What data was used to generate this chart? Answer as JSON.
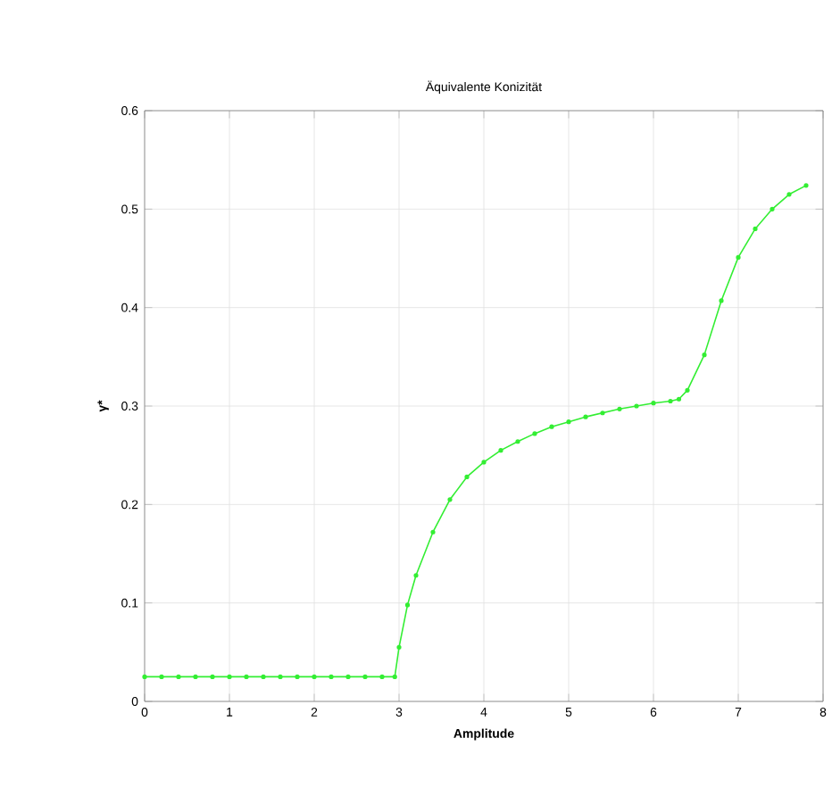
{
  "chart_data": {
    "type": "line",
    "title": "Äquivalente Konizität",
    "xlabel": "Amplitude",
    "ylabel": "γ*",
    "x": [
      0,
      0.2,
      0.4,
      0.6,
      0.8,
      1.0,
      1.2,
      1.4,
      1.6,
      1.8,
      2.0,
      2.2,
      2.4,
      2.6,
      2.8,
      2.95,
      3.0,
      3.1,
      3.2,
      3.4,
      3.6,
      3.8,
      4.0,
      4.2,
      4.4,
      4.6,
      4.8,
      5.0,
      5.2,
      5.4,
      5.6,
      5.8,
      6.0,
      6.2,
      6.3,
      6.4,
      6.6,
      6.8,
      7.0,
      7.2,
      7.4,
      7.6,
      7.8
    ],
    "series": [
      {
        "color": "#33ee33",
        "values": [
          0.025,
          0.025,
          0.025,
          0.025,
          0.025,
          0.025,
          0.025,
          0.025,
          0.025,
          0.025,
          0.025,
          0.025,
          0.025,
          0.025,
          0.025,
          0.025,
          0.055,
          0.098,
          0.128,
          0.172,
          0.205,
          0.228,
          0.243,
          0.255,
          0.264,
          0.272,
          0.279,
          0.284,
          0.289,
          0.293,
          0.297,
          0.3,
          0.303,
          0.305,
          0.307,
          0.316,
          0.352,
          0.407,
          0.451,
          0.48,
          0.5,
          0.515,
          0.524
        ]
      }
    ],
    "xlim": [
      0,
      8
    ],
    "ylim": [
      0,
      0.6
    ],
    "xticks": [
      0,
      1,
      2,
      3,
      4,
      5,
      6,
      7,
      8
    ],
    "yticks": [
      0,
      0.1,
      0.2,
      0.3,
      0.4,
      0.5,
      0.6
    ],
    "grid": true,
    "marker": "circle",
    "line_style": "solid"
  }
}
